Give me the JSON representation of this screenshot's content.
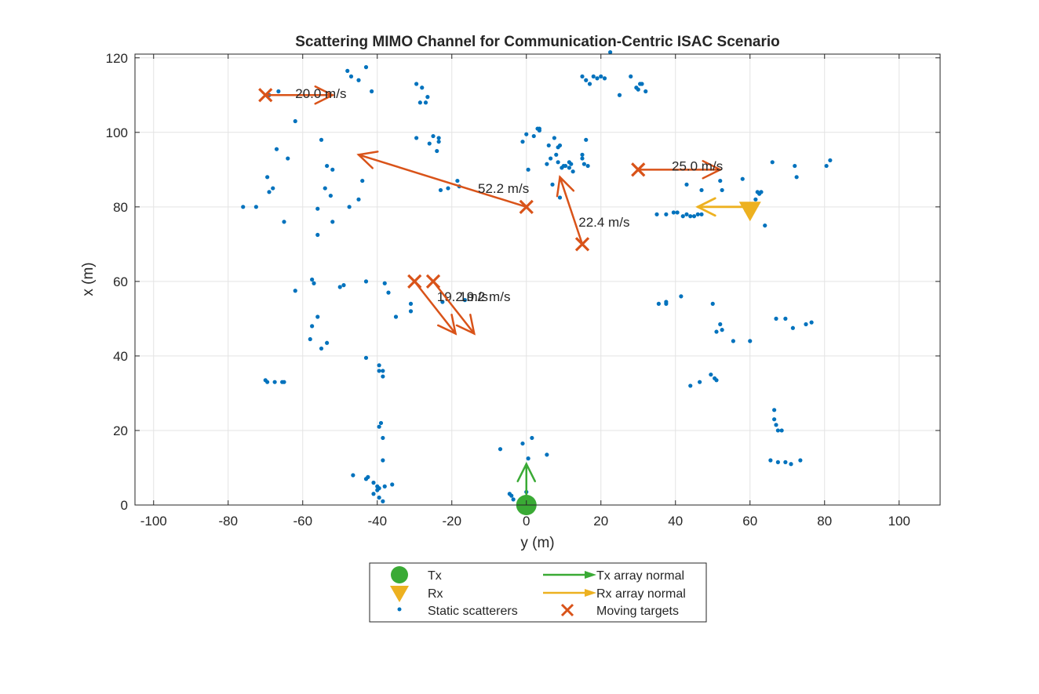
{
  "chart_data": {
    "type": "scatter",
    "title": "Scattering MIMO Channel for Communication-Centric ISAC Scenario",
    "xlabel": "y (m)",
    "ylabel": "x (m)",
    "xlim": [
      -105,
      111
    ],
    "ylim": [
      0,
      121
    ],
    "xticks": [
      -100,
      -80,
      -60,
      -40,
      -20,
      0,
      20,
      40,
      60,
      80,
      100
    ],
    "yticks": [
      0,
      20,
      40,
      60,
      80,
      100,
      120
    ],
    "grid": true,
    "legend_position": "bottom-outside",
    "colors": {
      "tx": "#3aaa35",
      "rx": "#edb120",
      "scatter": "#0072bd",
      "target": "#d95319"
    },
    "tx": {
      "name": "Tx",
      "y": 0,
      "x": 0
    },
    "tx_normal": {
      "name": "Tx array normal",
      "y": 0,
      "x": 0,
      "dy": 0,
      "dx": 11
    },
    "rx": {
      "name": "Rx",
      "y": 60,
      "x": 79.5
    },
    "rx_normal": {
      "name": "Rx array normal",
      "y": 60,
      "x": 80,
      "dy": -14,
      "dx": 0
    },
    "static_scatterers": {
      "name": "Static scatterers",
      "points": [
        [
          -48,
          116.5
        ],
        [
          -47,
          115
        ],
        [
          -45,
          114
        ],
        [
          -43,
          117.5
        ],
        [
          -41.5,
          111
        ],
        [
          -29.5,
          113
        ],
        [
          -28,
          112
        ],
        [
          -28.5,
          108
        ],
        [
          -27,
          108
        ],
        [
          -26.5,
          109.5
        ],
        [
          -69,
          110
        ],
        [
          -66.5,
          111
        ],
        [
          -62,
          103
        ],
        [
          -55,
          98
        ],
        [
          -67,
          95.5
        ],
        [
          -64,
          93
        ],
        [
          -53.5,
          91
        ],
        [
          -52,
          90
        ],
        [
          -54,
          85
        ],
        [
          -52.5,
          83
        ],
        [
          -56,
          79.5
        ],
        [
          -52,
          76
        ],
        [
          -56,
          72.5
        ],
        [
          -69.5,
          88
        ],
        [
          -69,
          84
        ],
        [
          -68,
          85
        ],
        [
          -65,
          76
        ],
        [
          -76,
          80
        ],
        [
          -72.5,
          80
        ],
        [
          -47.5,
          80
        ],
        [
          -45,
          82
        ],
        [
          -44,
          87
        ],
        [
          -29.5,
          98.5
        ],
        [
          -26,
          97
        ],
        [
          -25,
          99
        ],
        [
          -23.5,
          98.5
        ],
        [
          -23.5,
          97.5
        ],
        [
          -24,
          95
        ],
        [
          -23,
          84.5
        ],
        [
          -21,
          85
        ],
        [
          -18.5,
          87
        ],
        [
          -18,
          85.5
        ],
        [
          -1,
          97.5
        ],
        [
          0,
          99.5
        ],
        [
          0.5,
          90
        ],
        [
          2,
          99
        ],
        [
          3,
          101
        ],
        [
          3.5,
          100.5
        ],
        [
          3.5,
          101
        ],
        [
          5.5,
          91.5
        ],
        [
          6,
          96.5
        ],
        [
          6.5,
          93
        ],
        [
          7.5,
          98.5
        ],
        [
          8,
          94
        ],
        [
          8.5,
          96
        ],
        [
          9,
          96.5
        ],
        [
          8.5,
          92
        ],
        [
          9.5,
          90.5
        ],
        [
          10,
          91
        ],
        [
          10.5,
          91
        ],
        [
          11.5,
          90.5
        ],
        [
          11.5,
          92
        ],
        [
          12,
          91.5
        ],
        [
          12.5,
          89.5
        ],
        [
          15,
          93
        ],
        [
          15,
          94
        ],
        [
          15.5,
          91.5
        ],
        [
          16,
          98
        ],
        [
          16.5,
          91
        ],
        [
          7,
          86
        ],
        [
          9,
          82.5
        ],
        [
          15,
          115
        ],
        [
          16,
          114
        ],
        [
          17,
          113
        ],
        [
          18,
          115
        ],
        [
          19,
          114.5
        ],
        [
          20,
          115
        ],
        [
          21,
          114.5
        ],
        [
          25,
          110
        ],
        [
          28,
          115
        ],
        [
          29.5,
          112
        ],
        [
          30,
          111.5
        ],
        [
          30.5,
          113
        ],
        [
          31,
          113
        ],
        [
          32,
          111
        ],
        [
          22.5,
          121.5
        ],
        [
          35,
          78
        ],
        [
          37.5,
          78
        ],
        [
          39.5,
          78.5
        ],
        [
          40.5,
          78.5
        ],
        [
          42,
          77.5
        ],
        [
          43,
          78
        ],
        [
          44,
          77.5
        ],
        [
          45,
          77.5
        ],
        [
          46,
          78
        ],
        [
          47,
          78
        ],
        [
          43,
          86
        ],
        [
          47,
          84.5
        ],
        [
          52,
          87
        ],
        [
          52.5,
          84.5
        ],
        [
          58,
          87.5
        ],
        [
          62,
          84
        ],
        [
          62.5,
          83.5
        ],
        [
          63,
          84
        ],
        [
          61.5,
          82
        ],
        [
          59,
          79
        ],
        [
          64,
          75
        ],
        [
          66,
          92
        ],
        [
          72,
          91
        ],
        [
          72.5,
          88
        ],
        [
          80.5,
          91
        ],
        [
          81.5,
          92.5
        ],
        [
          -62,
          57.5
        ],
        [
          -57.5,
          60.5
        ],
        [
          -57,
          59.5
        ],
        [
          -50,
          58.5
        ],
        [
          -49,
          59
        ],
        [
          -43,
          60
        ],
        [
          -38,
          59.5
        ],
        [
          -37,
          57
        ],
        [
          -31,
          54
        ],
        [
          -31,
          52
        ],
        [
          -35,
          50.5
        ],
        [
          -57.5,
          48
        ],
        [
          -56,
          50.5
        ],
        [
          -58,
          44.5
        ],
        [
          -55,
          42
        ],
        [
          -53.5,
          43.5
        ],
        [
          -22.5,
          54.5
        ],
        [
          -16.5,
          55
        ],
        [
          35.5,
          54
        ],
        [
          37.5,
          54.5
        ],
        [
          37.5,
          54
        ],
        [
          41.5,
          56
        ],
        [
          50,
          54
        ],
        [
          51,
          46.5
        ],
        [
          52,
          48.5
        ],
        [
          52.5,
          47
        ],
        [
          55.5,
          44
        ],
        [
          60,
          44
        ],
        [
          67,
          50
        ],
        [
          69.5,
          50
        ],
        [
          71.5,
          47.5
        ],
        [
          75,
          48.5
        ],
        [
          76.5,
          49
        ],
        [
          -43,
          39.5
        ],
        [
          -39.5,
          37.5
        ],
        [
          -39.5,
          36
        ],
        [
          -38.5,
          36
        ],
        [
          -38.5,
          34.5
        ],
        [
          -70,
          33.5
        ],
        [
          -69.5,
          33
        ],
        [
          -67.5,
          33
        ],
        [
          -65.5,
          33
        ],
        [
          -65,
          33
        ],
        [
          44,
          32
        ],
        [
          46.5,
          33
        ],
        [
          49.5,
          35
        ],
        [
          50.5,
          34
        ],
        [
          51,
          33.5
        ],
        [
          66.5,
          25.5
        ],
        [
          66.5,
          23
        ],
        [
          67,
          21.5
        ],
        [
          67.5,
          20
        ],
        [
          68.5,
          20
        ],
        [
          -39.5,
          21
        ],
        [
          -39,
          22
        ],
        [
          -38.5,
          18
        ],
        [
          -38.5,
          12
        ],
        [
          -46.5,
          8
        ],
        [
          -43,
          7
        ],
        [
          -42.5,
          7.5
        ],
        [
          -41,
          6
        ],
        [
          -40,
          5
        ],
        [
          -39.5,
          4.5
        ],
        [
          -39.5,
          2
        ],
        [
          -41,
          3
        ],
        [
          -40,
          4
        ],
        [
          -38,
          5
        ],
        [
          -38.5,
          1
        ],
        [
          -36,
          5.5
        ],
        [
          -7,
          15
        ],
        [
          -1,
          16.5
        ],
        [
          1.5,
          18
        ],
        [
          0.5,
          12.5
        ],
        [
          5.5,
          13.5
        ],
        [
          -4.5,
          3
        ],
        [
          -4,
          2.5
        ],
        [
          -3.5,
          1.5
        ],
        [
          0,
          3.5
        ],
        [
          65.5,
          12
        ],
        [
          67.5,
          11.5
        ],
        [
          69.5,
          11.5
        ],
        [
          71,
          11
        ],
        [
          73.5,
          12
        ]
      ]
    },
    "moving_targets": {
      "name": "Moving targets",
      "items": [
        {
          "y": -70,
          "x": 110,
          "dy": 18,
          "dx": 0,
          "label": "20.0 m/s",
          "label_y": -62,
          "label_x": 110.5
        },
        {
          "y": 0,
          "x": 80,
          "dy": -45,
          "dx": 14,
          "label": "52.2 m/s",
          "label_y": -13,
          "label_x": 85
        },
        {
          "y": 15,
          "x": 70,
          "dy": -6,
          "dx": 18,
          "label": "22.4 m/s",
          "label_y": 14,
          "label_x": 76
        },
        {
          "y": 30,
          "x": 90,
          "dy": 22,
          "dx": 0,
          "label": "25.0 m/s",
          "label_y": 39,
          "label_x": 91
        },
        {
          "y": -30,
          "x": 60,
          "dy": 11,
          "dx": -14,
          "label": "19.2 m/s",
          "label_y": -24,
          "label_x": 56
        },
        {
          "y": -25,
          "x": 60,
          "dy": 11,
          "dx": -14,
          "label": "19.2 m/s",
          "label_y": -18,
          "label_x": 56
        }
      ]
    }
  },
  "legend": {
    "tx": "Tx",
    "rx": "Rx",
    "scatter": "Static scatterers",
    "tx_normal": "Tx array normal",
    "rx_normal": "Rx array normal",
    "target": "Moving targets"
  }
}
